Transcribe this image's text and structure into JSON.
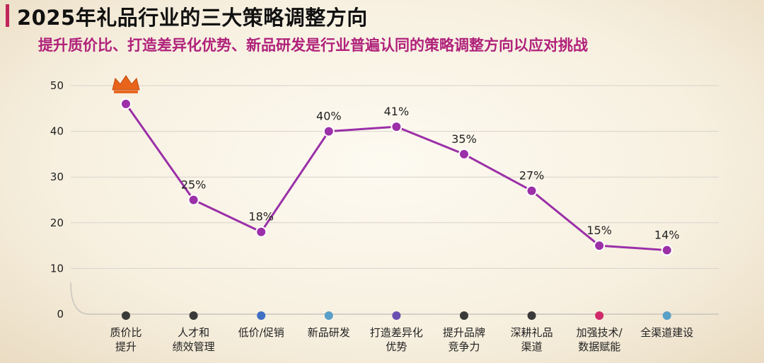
{
  "header": {
    "title": "2025年礼品行业的三大策略调整方向",
    "subtitle": "提升质价比、打造差异化优势、新品研发是行业普遍认同的策略调整方向以应对挑战"
  },
  "colors": {
    "accent_bar": "#c0255a",
    "subtitle": "#b0217a",
    "line": "#9b30a8",
    "marker": "#9b30a8",
    "crown": "#e8641a"
  },
  "chart_data": {
    "type": "line",
    "categories": [
      [
        "质价比",
        "提升"
      ],
      [
        "人才和",
        "绩效管理"
      ],
      [
        "低价/促销"
      ],
      [
        "新品研发"
      ],
      [
        "打造差异化",
        "优势"
      ],
      [
        "提升品牌",
        "竞争力"
      ],
      [
        "深耕礼品",
        "渠道"
      ],
      [
        "加强技术/",
        "数据赋能"
      ],
      [
        "全渠道建设"
      ]
    ],
    "values": [
      46,
      25,
      18,
      40,
      41,
      35,
      27,
      15,
      14
    ],
    "data_labels": [
      "",
      "25%",
      "18%",
      "40%",
      "41%",
      "35%",
      "27%",
      "15%",
      "14%"
    ],
    "ylim": [
      0,
      50
    ],
    "yticks": [
      "0",
      "10",
      "20",
      "30",
      "40",
      "50"
    ],
    "grid": true,
    "category_dot_colors": [
      "#3a3a3a",
      "#3a3a3a",
      "#3f6fc2",
      "#5aa0c8",
      "#6a4fb0",
      "#3a3a3a",
      "#3a3a3a",
      "#d02a6a",
      "#5aa0c8"
    ],
    "top_marker_icon": "crown-icon"
  }
}
